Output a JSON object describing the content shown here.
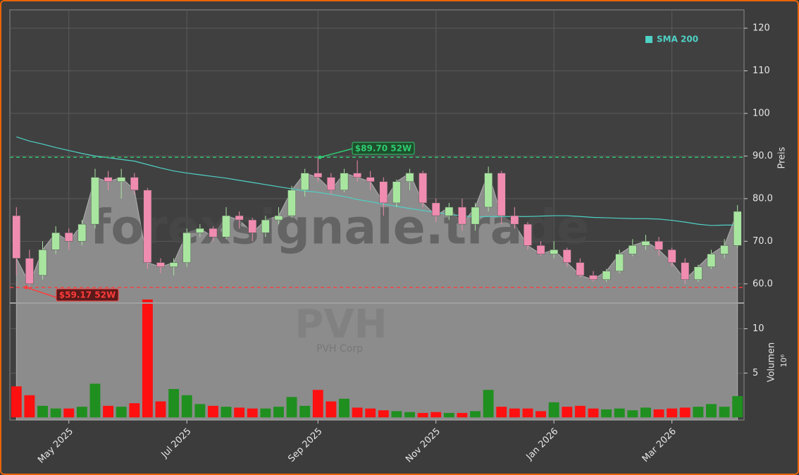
{
  "chart_data": {
    "type": "candlestick",
    "watermark": "forexsignale.trade",
    "ticker": "PVH",
    "company": "PVH Corp",
    "categories": [
      null,
      null,
      null,
      null,
      "May 2025",
      null,
      null,
      null,
      null,
      null,
      null,
      null,
      null,
      "Jul 2025",
      null,
      null,
      null,
      null,
      null,
      null,
      null,
      null,
      null,
      "Sep 2025",
      null,
      null,
      null,
      null,
      null,
      null,
      null,
      null,
      "Nov 2025",
      null,
      null,
      null,
      null,
      null,
      null,
      null,
      null,
      "Jan 2026",
      null,
      null,
      null,
      null,
      null,
      null,
      null,
      null,
      "Mar 2026",
      null,
      null,
      null,
      null,
      null
    ],
    "open": [
      76,
      66,
      62,
      68,
      72,
      70,
      74,
      85,
      84,
      85,
      82,
      65,
      64,
      65,
      72,
      73,
      71,
      76,
      75,
      72,
      75,
      76,
      82,
      86,
      85,
      82,
      86,
      85,
      84,
      79,
      84,
      86,
      79,
      76,
      78,
      74,
      78,
      86,
      76,
      74,
      69,
      67,
      68,
      65,
      62,
      61,
      63,
      67,
      69,
      70,
      68,
      65,
      61,
      64,
      67,
      69
    ],
    "high": [
      78,
      68,
      70,
      73.5,
      73,
      75,
      87,
      86.5,
      87,
      86,
      82.5,
      66,
      66,
      73,
      74,
      73.5,
      78,
      77,
      75.5,
      76,
      78,
      83,
      87,
      89.7,
      86,
      87,
      89,
      86.5,
      85,
      84.5,
      87,
      86.5,
      80,
      79,
      80,
      79,
      87.5,
      86.5,
      78,
      74.5,
      70,
      70,
      68.5,
      66,
      63,
      63.5,
      68,
      70.5,
      71.5,
      71,
      68.5,
      66,
      64.5,
      68,
      70.5,
      78.5
    ],
    "low": [
      62,
      59.17,
      61,
      67,
      68,
      69,
      73,
      82,
      80,
      81,
      63.5,
      62.5,
      62,
      64,
      71,
      70,
      70.5,
      73,
      70,
      71,
      74,
      75.5,
      80.5,
      84,
      81,
      81.5,
      84,
      82,
      76,
      78,
      82,
      78,
      74.5,
      75,
      72.5,
      72.5,
      77,
      74,
      73,
      68,
      66.5,
      66,
      64,
      61.5,
      60.5,
      60.5,
      62.5,
      66.5,
      68,
      66.5,
      64,
      60,
      60.5,
      63.5,
      66,
      68.5
    ],
    "close": [
      66,
      60,
      68,
      72,
      70,
      74,
      85,
      84,
      85,
      82,
      65,
      64,
      65,
      72,
      73,
      71,
      76,
      75,
      72,
      75,
      76,
      82,
      86,
      85,
      82,
      86,
      85,
      84,
      79,
      84,
      86,
      79,
      76,
      78,
      74,
      78,
      86,
      76,
      74,
      69,
      67,
      68,
      65,
      62,
      61,
      63,
      67,
      69,
      70,
      68,
      65,
      61,
      64,
      67,
      69,
      77
    ],
    "up_color": "#a8e6a0",
    "down_color": "#f08cb0",
    "area_color": "#8c8c8c",
    "sma": {
      "name": "SMA 200",
      "color": "#4fd1c5",
      "values": [
        94.5,
        93.5,
        92.8,
        92,
        91.3,
        90.6,
        90,
        89.6,
        89.2,
        88.8,
        88,
        87.2,
        86.5,
        86,
        85.6,
        85.2,
        84.8,
        84.3,
        83.8,
        83.3,
        82.8,
        82.3,
        81.8,
        81.5,
        81,
        80.5,
        79.8,
        79.3,
        78.7,
        78.2,
        77.7,
        77.2,
        76.8,
        76.3,
        76,
        75.7,
        75.8,
        75.8,
        75.8,
        75.8,
        75.9,
        76,
        76,
        75.8,
        75.6,
        75.5,
        75.4,
        75.3,
        75.3,
        75.2,
        74.9,
        74.5,
        74,
        73.7,
        73.8,
        73.8
      ]
    },
    "legend": "upper right",
    "ylabel": "Preis",
    "ylim": [
      55.5,
      124.3
    ],
    "yticks": [
      {
        "value": 60,
        "label": "60.0"
      },
      {
        "value": 70,
        "label": "70.0"
      },
      {
        "value": 80,
        "label": "80.0"
      },
      {
        "value": 90,
        "label": "90.0"
      },
      {
        "value": 100,
        "label": "100"
      },
      {
        "value": 110,
        "label": "110"
      },
      {
        "value": 120,
        "label": "120"
      }
    ],
    "grid": true,
    "high_52w": {
      "value": 89.7,
      "label": "$89.70 52W",
      "color": "#2ecc71"
    },
    "low_52w": {
      "value": 59.17,
      "label": "$59.17 52W",
      "color": "#ff3b3b"
    },
    "volume": {
      "ylabel": "Volumen",
      "multiplier": "10⁶",
      "ylim": [
        -0.3,
        12.9
      ],
      "yticks": [
        5,
        10
      ],
      "up_color": "#1f8f1f",
      "down_color": "#ff1010",
      "values": [
        3.5,
        2.5,
        1.3,
        1,
        1,
        1.2,
        3.8,
        1.3,
        1.2,
        1.6,
        13.3,
        1.8,
        3.2,
        2.5,
        1.5,
        1.3,
        1.2,
        1.1,
        1,
        1,
        1.2,
        2.3,
        1.3,
        3.1,
        1.8,
        2.1,
        1.1,
        1,
        0.8,
        0.7,
        0.6,
        0.5,
        0.6,
        0.5,
        0.5,
        0.7,
        3.1,
        1.2,
        1,
        1,
        0.7,
        1.7,
        1.2,
        1.3,
        1,
        0.9,
        1,
        0.8,
        1.1,
        0.9,
        1,
        1.1,
        1.2,
        1.5,
        1.2,
        2.4
      ]
    }
  }
}
